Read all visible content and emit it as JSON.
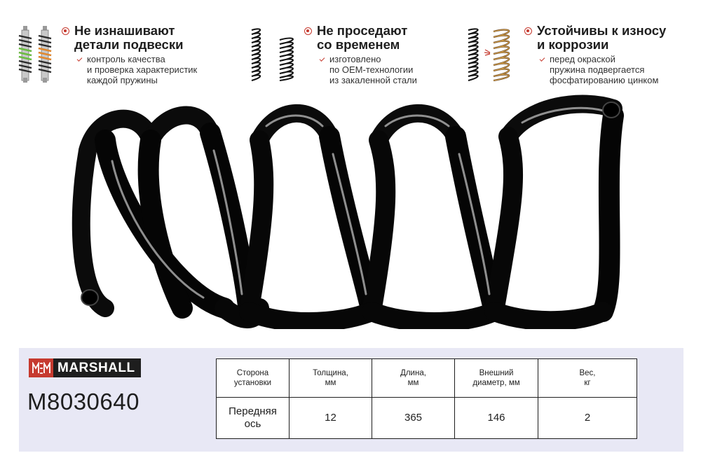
{
  "features": [
    {
      "title_line1": "Не изнашивают",
      "title_line2": "детали подвески",
      "desc": [
        "контроль качества",
        "и проверка характеристик",
        "каждой пружины"
      ],
      "thumb": "shock-absorbers-icon"
    },
    {
      "title_line1": "Не проседают",
      "title_line2": "со временем",
      "desc": [
        "изготовлено",
        "по OEM-технологии",
        "из закаленной стали"
      ],
      "thumb": "springs-pair-icon"
    },
    {
      "title_line1": "Устойчивы к износу",
      "title_line2": "и коррозии",
      "desc": [
        "перед окраской",
        "пружина подвергается",
        "фосфатированию цинком"
      ],
      "thumb": "zinc-spring-icon"
    }
  ],
  "brand": "MARSHALL",
  "part_number": "M8030640",
  "spec_table": {
    "headers": [
      [
        "Сторона",
        "установки"
      ],
      [
        "Толщина,",
        "мм"
      ],
      [
        "Длина,",
        "мм"
      ],
      [
        "Внешний",
        "диаметр, мм"
      ],
      [
        "Вес,",
        "кг"
      ]
    ],
    "values": [
      [
        "Передняя",
        "ось"
      ],
      [
        "12"
      ],
      [
        "365"
      ],
      [
        "146"
      ],
      [
        "2"
      ]
    ]
  },
  "colors": {
    "accent_red": "#c63a2f",
    "panel_bg": "#e8e8f5",
    "spring_black": "#111111"
  }
}
